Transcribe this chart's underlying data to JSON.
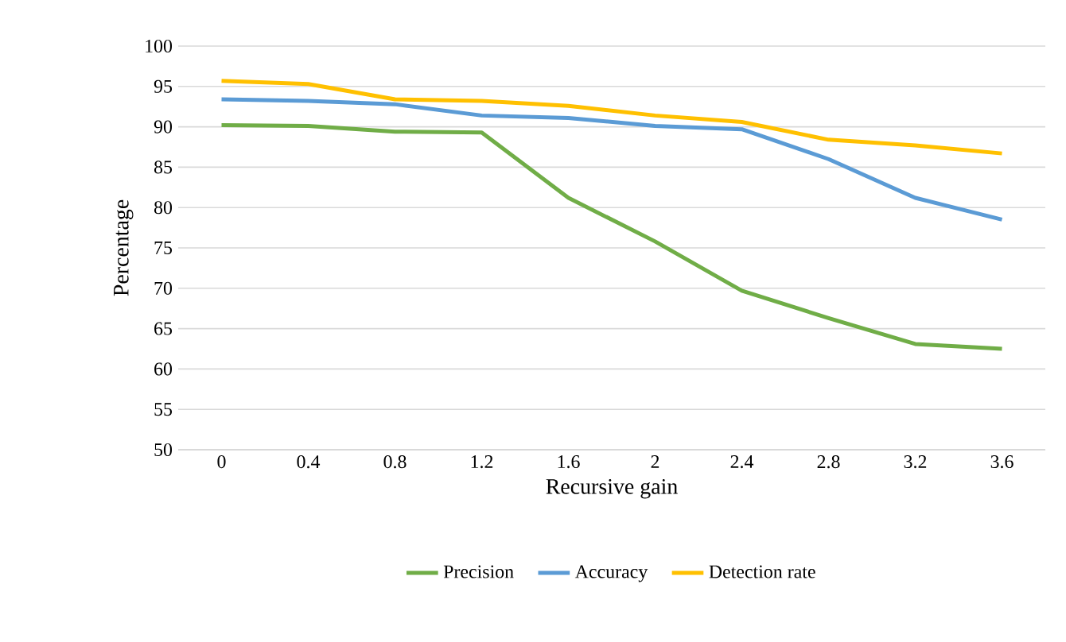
{
  "chart_data": {
    "type": "line",
    "xlabel": "Recursive gain",
    "ylabel": "Percentage",
    "categories": [
      "0",
      "0.4",
      "0.8",
      "1.2",
      "1.6",
      "2",
      "2.4",
      "2.8",
      "3.2",
      "3.6"
    ],
    "series": [
      {
        "name": "Precision",
        "color": "#70ad47",
        "values": [
          90.2,
          90.1,
          89.4,
          89.3,
          81.2,
          75.8,
          69.7,
          66.3,
          63.1,
          62.5
        ]
      },
      {
        "name": "Accuracy",
        "color": "#5b9bd5",
        "values": [
          93.4,
          93.2,
          92.8,
          91.4,
          91.1,
          90.1,
          89.7,
          86.0,
          81.2,
          78.5
        ]
      },
      {
        "name": "Detection rate",
        "color": "#ffc000",
        "values": [
          95.7,
          95.3,
          93.4,
          93.2,
          92.6,
          91.4,
          90.6,
          88.4,
          87.7,
          86.7
        ]
      }
    ],
    "ylim": [
      50,
      100
    ],
    "yticks": [
      50,
      55,
      60,
      65,
      70,
      75,
      80,
      85,
      90,
      95,
      100
    ],
    "grid": "y",
    "legend": "bottom",
    "marker": "none",
    "line_style": "solid"
  }
}
